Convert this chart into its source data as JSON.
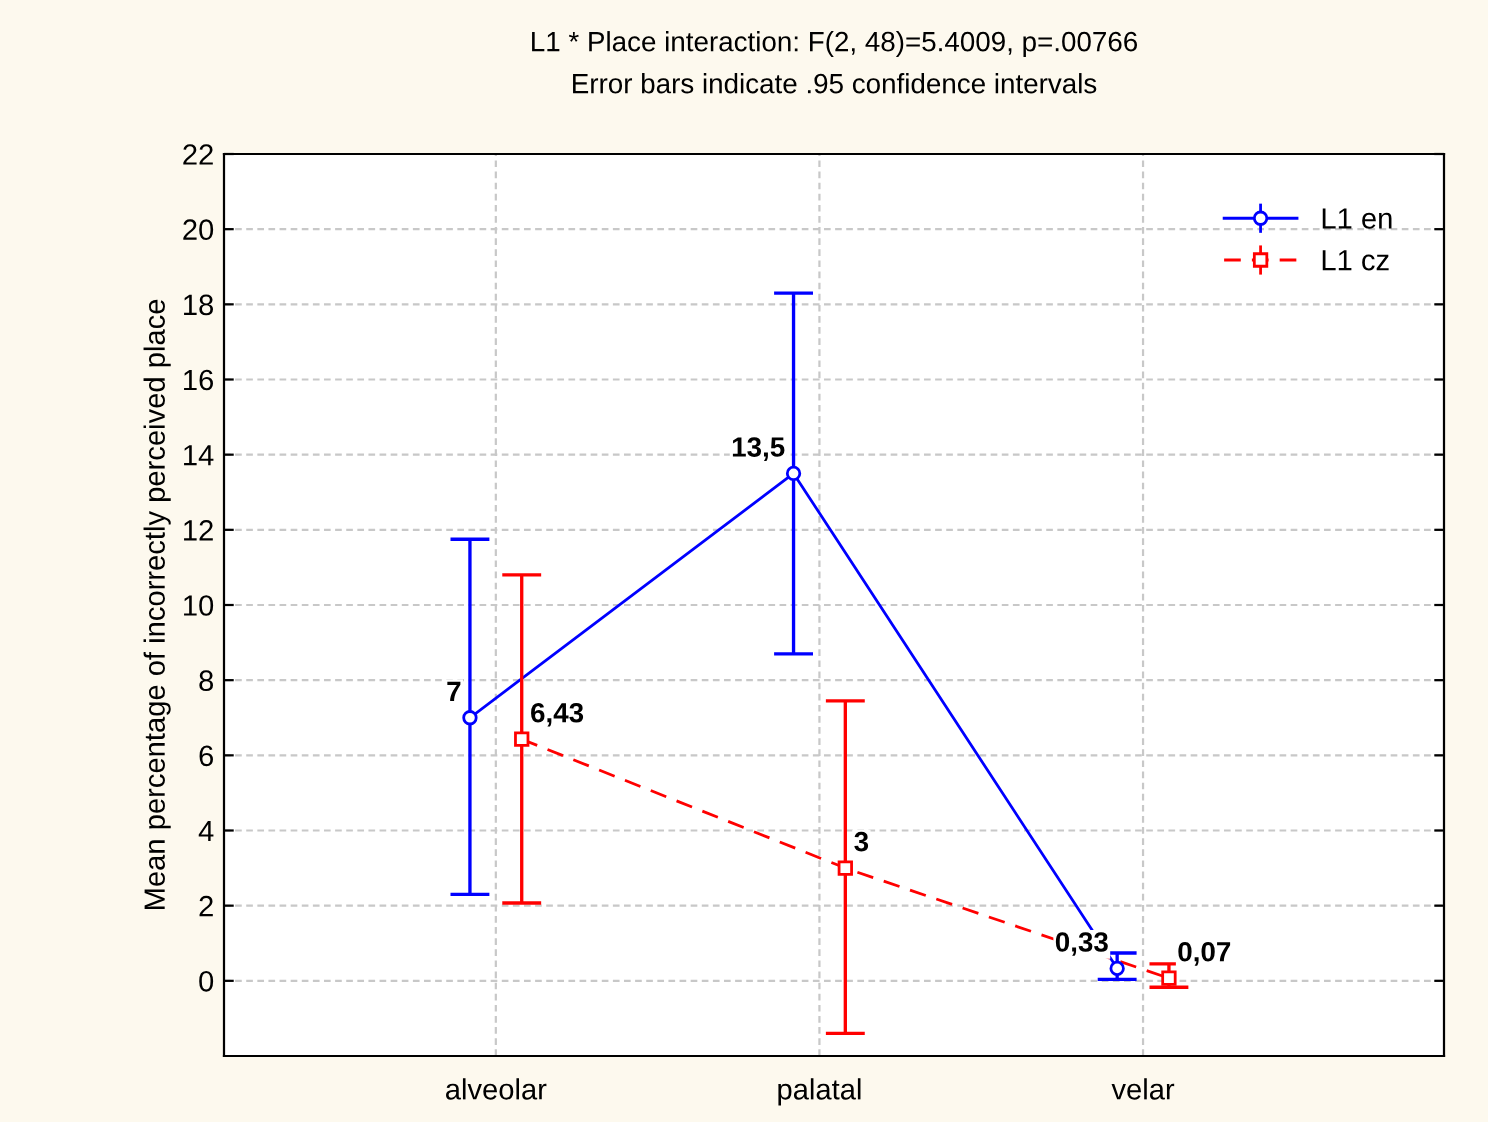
{
  "chart_data": {
    "type": "line",
    "title": "L1 * Place interaction: F(2, 48)=5.4009, p=.00766",
    "subtitle": "Error bars indicate .95 confidence intervals",
    "ylabel": "Mean percentage of incorrectly perceived place",
    "categories": [
      "alveolar",
      "palatal",
      "velar"
    ],
    "series": [
      {
        "name": "L1 en",
        "color": "#0000ff",
        "marker": "circle",
        "line_style": "solid",
        "values": [
          7,
          13.5,
          0.33
        ],
        "value_labels": [
          "7",
          "13,5",
          "0,33"
        ],
        "errors": [
          [
            2.3,
            11.75
          ],
          [
            8.7,
            18.3
          ],
          [
            0.04,
            0.74
          ]
        ]
      },
      {
        "name": "L1 cz",
        "color": "#ff0000",
        "marker": "square",
        "line_style": "dashed",
        "values": [
          6.43,
          3,
          0.07
        ],
        "value_labels": [
          "6,43",
          "3",
          "0,07"
        ],
        "errors": [
          [
            2.07,
            10.8
          ],
          [
            -1.4,
            7.45
          ],
          [
            -0.17,
            0.45
          ]
        ]
      }
    ],
    "ylim": [
      -2,
      22
    ],
    "yticks": [
      0,
      2,
      4,
      6,
      8,
      10,
      12,
      14,
      16,
      18,
      20,
      22
    ],
    "grid": true,
    "legend": "top right"
  }
}
